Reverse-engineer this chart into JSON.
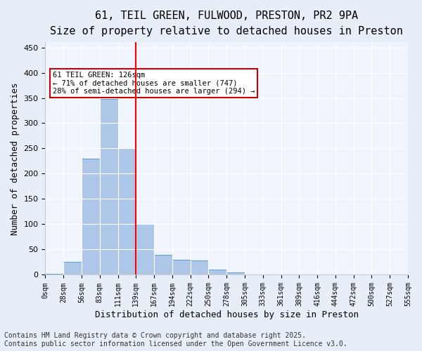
{
  "title": "61, TEIL GREEN, FULWOOD, PRESTON, PR2 9PA",
  "subtitle": "Size of property relative to detached houses in Preston",
  "xlabel": "Distribution of detached houses by size in Preston",
  "ylabel": "Number of detached properties",
  "bin_labels": [
    "0sqm",
    "28sqm",
    "56sqm",
    "83sqm",
    "111sqm",
    "139sqm",
    "167sqm",
    "194sqm",
    "222sqm",
    "250sqm",
    "278sqm",
    "305sqm",
    "333sqm",
    "361sqm",
    "389sqm",
    "416sqm",
    "444sqm",
    "472sqm",
    "500sqm",
    "527sqm",
    "555sqm"
  ],
  "bar_values": [
    2,
    25,
    230,
    348,
    250,
    100,
    40,
    30,
    28,
    10,
    5,
    1,
    0,
    0,
    0,
    0,
    0,
    0,
    0,
    0
  ],
  "bar_color": "#aec6e8",
  "bar_edge_color": "#5a9fd4",
  "red_line_x": 4.5,
  "annotation_text": "61 TEIL GREEN: 126sqm\n← 71% of detached houses are smaller (747)\n28% of semi-detached houses are larger (294) →",
  "annotation_box_color": "#ffffff",
  "annotation_box_edge": "#cc0000",
  "ylim": [
    0,
    460
  ],
  "yticks": [
    0,
    50,
    100,
    150,
    200,
    250,
    300,
    350,
    400,
    450
  ],
  "footnote": "Contains HM Land Registry data © Crown copyright and database right 2025.\nContains public sector information licensed under the Open Government Licence v3.0.",
  "bg_color": "#e8eef8",
  "plot_bg_color": "#f0f4fc",
  "title_fontsize": 11,
  "xlabel_fontsize": 9,
  "ylabel_fontsize": 9,
  "footnote_fontsize": 7
}
